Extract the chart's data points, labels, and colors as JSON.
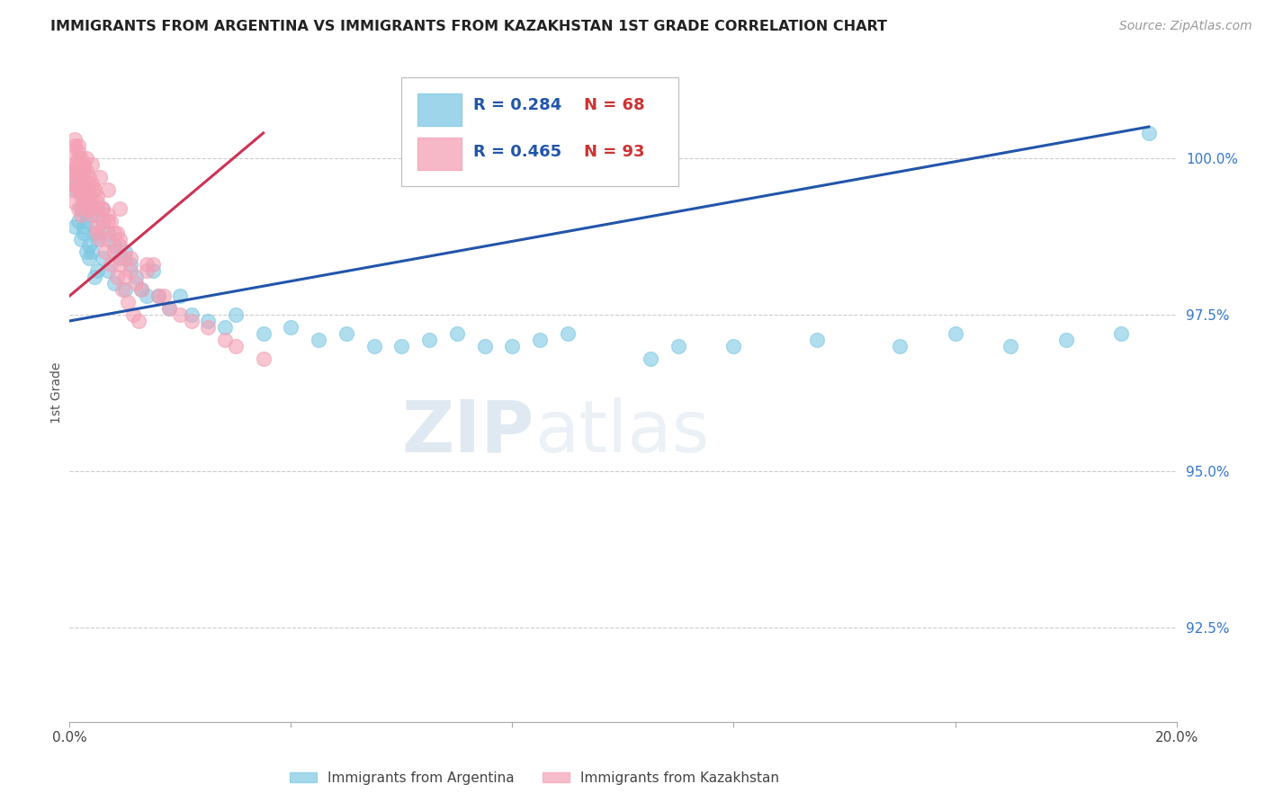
{
  "title": "IMMIGRANTS FROM ARGENTINA VS IMMIGRANTS FROM KAZAKHSTAN 1ST GRADE CORRELATION CHART",
  "source": "Source: ZipAtlas.com",
  "ylabel": "1st Grade",
  "watermark_zip": "ZIP",
  "watermark_atlas": "atlas",
  "blue_label": "Immigrants from Argentina",
  "pink_label": "Immigrants from Kazakhstan",
  "blue_R": 0.284,
  "blue_N": 68,
  "pink_R": 0.465,
  "pink_N": 93,
  "xlim": [
    0.0,
    20.0
  ],
  "ylim": [
    91.0,
    101.5
  ],
  "yticks": [
    92.5,
    95.0,
    97.5,
    100.0
  ],
  "xticks": [
    0.0,
    4.0,
    8.0,
    12.0,
    16.0,
    20.0
  ],
  "blue_color": "#7ec8e3",
  "pink_color": "#f4a0b5",
  "blue_line_color": "#2255aa",
  "pink_line_color": "#cc3355",
  "right_label_color": "#3377cc",
  "legend_R_color": "#2255aa",
  "legend_N_color": "#cc3333",
  "blue_line_x0": 0.0,
  "blue_line_y0": 97.4,
  "blue_line_x1": 19.5,
  "blue_line_y1": 100.5,
  "pink_line_x0": 0.0,
  "pink_line_y0": 97.8,
  "pink_line_x1": 3.5,
  "pink_line_y1": 100.4,
  "blue_x": [
    0.1,
    0.1,
    0.1,
    0.15,
    0.15,
    0.2,
    0.2,
    0.2,
    0.25,
    0.25,
    0.3,
    0.3,
    0.3,
    0.35,
    0.35,
    0.4,
    0.4,
    0.45,
    0.5,
    0.5,
    0.5,
    0.6,
    0.6,
    0.7,
    0.7,
    0.8,
    0.8,
    0.9,
    1.0,
    1.0,
    1.1,
    1.2,
    1.3,
    1.4,
    1.5,
    1.6,
    1.8,
    2.0,
    2.2,
    2.5,
    2.8,
    3.0,
    3.5,
    4.0,
    4.5,
    5.0,
    5.5,
    6.5,
    7.0,
    7.5,
    8.0,
    9.0,
    10.5,
    11.0,
    12.0,
    13.5,
    15.0,
    16.0,
    17.0,
    18.0,
    19.0,
    0.05,
    0.25,
    0.35,
    0.45,
    6.0,
    8.5,
    19.5
  ],
  "blue_y": [
    99.8,
    99.5,
    98.9,
    99.6,
    99.0,
    99.7,
    99.2,
    98.7,
    99.4,
    98.8,
    99.5,
    99.0,
    98.5,
    99.3,
    98.6,
    99.1,
    98.5,
    98.8,
    99.2,
    98.7,
    98.2,
    99.0,
    98.4,
    98.8,
    98.2,
    98.6,
    98.0,
    98.4,
    98.5,
    97.9,
    98.3,
    98.1,
    97.9,
    97.8,
    98.2,
    97.8,
    97.6,
    97.8,
    97.5,
    97.4,
    97.3,
    97.5,
    97.2,
    97.3,
    97.1,
    97.2,
    97.0,
    97.1,
    97.2,
    97.0,
    97.0,
    97.2,
    96.8,
    97.0,
    97.0,
    97.1,
    97.0,
    97.2,
    97.0,
    97.1,
    97.2,
    99.6,
    98.9,
    98.4,
    98.1,
    97.0,
    97.1,
    100.4
  ],
  "pink_x": [
    0.05,
    0.05,
    0.05,
    0.1,
    0.1,
    0.1,
    0.1,
    0.15,
    0.15,
    0.15,
    0.15,
    0.2,
    0.2,
    0.2,
    0.2,
    0.25,
    0.25,
    0.25,
    0.3,
    0.3,
    0.3,
    0.35,
    0.35,
    0.4,
    0.4,
    0.45,
    0.5,
    0.5,
    0.5,
    0.6,
    0.6,
    0.7,
    0.7,
    0.8,
    0.8,
    0.9,
    0.9,
    1.0,
    1.0,
    1.1,
    1.2,
    1.3,
    1.5,
    1.6,
    1.8,
    2.0,
    2.2,
    2.5,
    2.8,
    3.0,
    3.5,
    0.05,
    0.08,
    0.12,
    0.18,
    0.22,
    0.28,
    0.32,
    0.38,
    0.42,
    0.48,
    0.55,
    0.65,
    0.75,
    0.85,
    0.95,
    1.05,
    1.15,
    1.25,
    0.15,
    0.25,
    0.45,
    0.7,
    0.9,
    1.4,
    0.2,
    0.35,
    0.6,
    0.85,
    1.1,
    1.7,
    0.1,
    0.15,
    0.3,
    0.4,
    0.55,
    0.7,
    0.9,
    0.15,
    1.4,
    0.3,
    0.75,
    0.5
  ],
  "pink_y": [
    100.1,
    99.8,
    99.5,
    100.2,
    99.9,
    99.6,
    99.3,
    100.1,
    99.8,
    99.5,
    99.2,
    100.0,
    99.7,
    99.4,
    99.1,
    99.9,
    99.6,
    99.3,
    99.8,
    99.5,
    99.2,
    99.7,
    99.4,
    99.6,
    99.3,
    99.5,
    99.4,
    99.1,
    98.8,
    99.2,
    98.9,
    99.0,
    98.7,
    98.8,
    98.5,
    98.6,
    98.3,
    98.4,
    98.1,
    98.2,
    98.0,
    97.9,
    98.3,
    97.8,
    97.6,
    97.5,
    97.4,
    97.3,
    97.1,
    97.0,
    96.8,
    99.6,
    99.8,
    99.9,
    99.7,
    99.5,
    99.4,
    99.3,
    99.2,
    99.1,
    98.9,
    98.7,
    98.5,
    98.3,
    98.1,
    97.9,
    97.7,
    97.5,
    97.4,
    100.0,
    99.8,
    99.5,
    99.1,
    98.7,
    98.2,
    99.9,
    99.6,
    99.2,
    98.8,
    98.4,
    97.8,
    100.3,
    100.2,
    100.0,
    99.9,
    99.7,
    99.5,
    99.2,
    99.8,
    98.3,
    99.6,
    99.0,
    99.3
  ]
}
